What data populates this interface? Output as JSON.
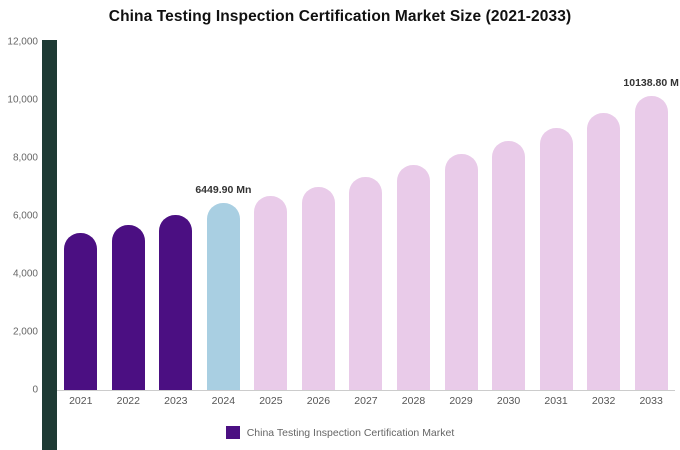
{
  "title": "China Testing Inspection Certification Market Size (2021-2033)",
  "legend": {
    "label": "China Testing Inspection Certification Market"
  },
  "colors": {
    "historical_bar": "#4b0f82",
    "highlight_bar": "#a9cfe2",
    "forecast_bar": "#e9cbe9",
    "accent_strip": "#1e3a34",
    "axis_text": "#666666"
  },
  "chart_data": {
    "type": "bar",
    "title": "China Testing Inspection Certification Market Size (2021-2033)",
    "xlabel": "",
    "ylabel": "",
    "ylim": [
      0,
      12000
    ],
    "grid": false,
    "legend_position": "bottom",
    "categories": [
      "2021",
      "2022",
      "2023",
      "2024",
      "2025",
      "2026",
      "2027",
      "2028",
      "2029",
      "2030",
      "2031",
      "2032",
      "2033"
    ],
    "values": [
      5400,
      5700,
      6050,
      6449.9,
      6700,
      7000,
      7350,
      7750,
      8150,
      8600,
      9050,
      9550,
      10138.8
    ],
    "y_ticks": [
      "12,000",
      "10,000",
      "8,000",
      "6,000",
      "4,000",
      "2,000",
      "0"
    ],
    "bar_color_roles": [
      "historical",
      "historical",
      "historical",
      "highlight",
      "forecast",
      "forecast",
      "forecast",
      "forecast",
      "forecast",
      "forecast",
      "forecast",
      "forecast",
      "forecast"
    ],
    "annotations": [
      {
        "category": "2024",
        "text": "6449.90 Mn"
      },
      {
        "category": "2033",
        "text": "10138.80 M"
      }
    ]
  }
}
